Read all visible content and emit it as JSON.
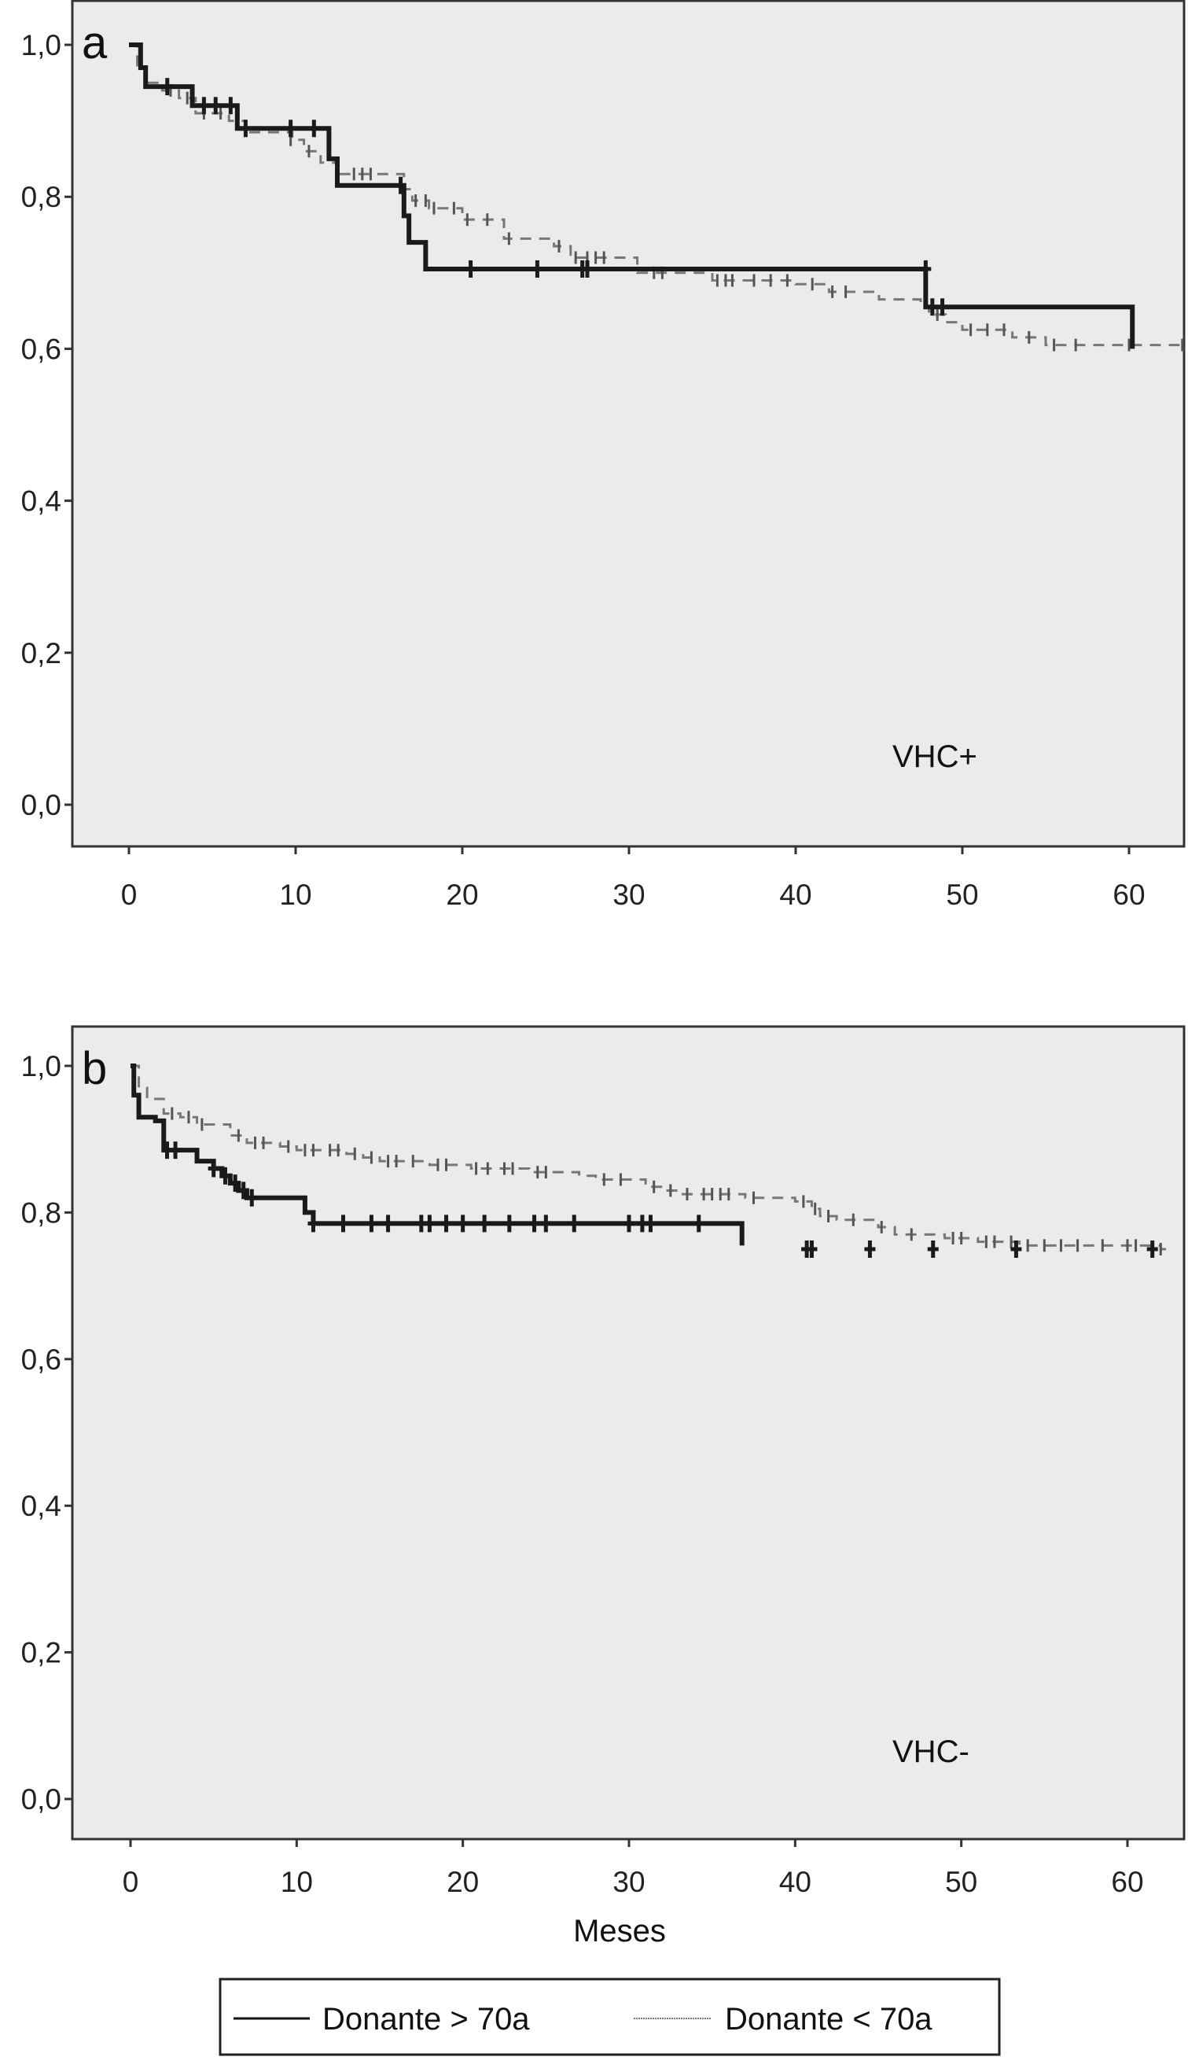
{
  "chart_data": [
    {
      "type": "line",
      "subtype": "kaplan-meier",
      "panel_label": "a",
      "annotation": "VHC+",
      "xlabel": "",
      "ylabel": "",
      "xlim": [
        -3,
        63.5
      ],
      "ylim": [
        -0.05,
        1.05
      ],
      "xticks": [
        "0",
        "10",
        "20",
        "30",
        "40",
        "50",
        "60"
      ],
      "xtick_values": [
        0,
        10,
        20,
        30,
        40,
        50,
        60
      ],
      "yticks": [
        "0,0",
        "0,2",
        "0,4",
        "0,6",
        "0,8",
        "1,0"
      ],
      "ytick_values": [
        0,
        0.2,
        0.4,
        0.6,
        0.8,
        1.0
      ],
      "grid": false,
      "series": [
        {
          "name": "Donante > 70a",
          "style": "solid",
          "steps": [
            [
              0,
              1.0
            ],
            [
              0.7,
              0.97
            ],
            [
              1,
              0.945
            ],
            [
              3.8,
              0.92
            ],
            [
              6.5,
              0.89
            ],
            [
              12,
              0.85
            ],
            [
              12.5,
              0.815
            ],
            [
              16.5,
              0.775
            ],
            [
              16.8,
              0.74
            ],
            [
              17.8,
              0.705
            ],
            [
              47.8,
              0.655
            ],
            [
              60.2,
              0.6
            ]
          ],
          "end": 60.2,
          "censored": [
            [
              2.3,
              0.945
            ],
            [
              4.5,
              0.92
            ],
            [
              5.2,
              0.92
            ],
            [
              6.1,
              0.92
            ],
            [
              7,
              0.89
            ],
            [
              9.7,
              0.89
            ],
            [
              11.1,
              0.89
            ],
            [
              16.3,
              0.815
            ],
            [
              20.5,
              0.705
            ],
            [
              24.5,
              0.705
            ],
            [
              27.2,
              0.705
            ],
            [
              27.5,
              0.705
            ],
            [
              47.8,
              0.705
            ],
            [
              48.2,
              0.655
            ],
            [
              48.8,
              0.655
            ]
          ]
        },
        {
          "name": "Donante < 70a",
          "style": "dashed",
          "steps": [
            [
              0,
              1.0
            ],
            [
              0.5,
              0.97
            ],
            [
              1,
              0.95
            ],
            [
              2,
              0.94
            ],
            [
              3,
              0.93
            ],
            [
              4,
              0.91
            ],
            [
              6,
              0.9
            ],
            [
              7,
              0.885
            ],
            [
              9.8,
              0.875
            ],
            [
              10.5,
              0.86
            ],
            [
              11.5,
              0.845
            ],
            [
              12.5,
              0.83
            ],
            [
              16.5,
              0.81
            ],
            [
              17,
              0.795
            ],
            [
              18,
              0.785
            ],
            [
              20,
              0.77
            ],
            [
              22.5,
              0.745
            ],
            [
              25.5,
              0.735
            ],
            [
              26.5,
              0.72
            ],
            [
              30.5,
              0.7
            ],
            [
              35,
              0.69
            ],
            [
              40,
              0.685
            ],
            [
              42,
              0.675
            ],
            [
              45,
              0.665
            ],
            [
              47.5,
              0.655
            ],
            [
              48,
              0.645
            ],
            [
              49,
              0.635
            ],
            [
              50,
              0.625
            ],
            [
              53,
              0.615
            ],
            [
              55,
              0.605
            ]
          ],
          "end": 63.5,
          "censored": [
            [
              2.5,
              0.94
            ],
            [
              3.5,
              0.93
            ],
            [
              4.5,
              0.91
            ],
            [
              5.5,
              0.91
            ],
            [
              9.7,
              0.875
            ],
            [
              10.8,
              0.86
            ],
            [
              13.5,
              0.83
            ],
            [
              14,
              0.83
            ],
            [
              14.5,
              0.83
            ],
            [
              17.2,
              0.795
            ],
            [
              17.8,
              0.795
            ],
            [
              18.3,
              0.785
            ],
            [
              19.5,
              0.785
            ],
            [
              20.3,
              0.77
            ],
            [
              21.5,
              0.77
            ],
            [
              22.8,
              0.745
            ],
            [
              25.8,
              0.735
            ],
            [
              26.8,
              0.72
            ],
            [
              27.5,
              0.72
            ],
            [
              28,
              0.72
            ],
            [
              28.5,
              0.72
            ],
            [
              31.5,
              0.7
            ],
            [
              32,
              0.7
            ],
            [
              35.3,
              0.69
            ],
            [
              35.8,
              0.69
            ],
            [
              36.2,
              0.69
            ],
            [
              37.5,
              0.69
            ],
            [
              38.5,
              0.69
            ],
            [
              39.5,
              0.69
            ],
            [
              41,
              0.685
            ],
            [
              42.2,
              0.675
            ],
            [
              43,
              0.675
            ],
            [
              48.5,
              0.645
            ],
            [
              50.5,
              0.625
            ],
            [
              51.5,
              0.625
            ],
            [
              52.5,
              0.625
            ],
            [
              54,
              0.615
            ],
            [
              55.5,
              0.605
            ],
            [
              56.8,
              0.605
            ],
            [
              60,
              0.605
            ],
            [
              63.2,
              0.605
            ]
          ]
        }
      ]
    },
    {
      "type": "line",
      "subtype": "kaplan-meier",
      "panel_label": "b",
      "annotation": "VHC-",
      "xlabel": "Meses",
      "ylabel": "",
      "xlim": [
        -3,
        63.5
      ],
      "ylim": [
        -0.05,
        1.05
      ],
      "xticks": [
        "0",
        "10",
        "20",
        "30",
        "40",
        "50",
        "60"
      ],
      "xtick_values": [
        0,
        10,
        20,
        30,
        40,
        50,
        60
      ],
      "yticks": [
        "0,0",
        "0,2",
        "0,4",
        "0,6",
        "0,8",
        "1,0"
      ],
      "ytick_values": [
        0,
        0.2,
        0.4,
        0.6,
        0.8,
        1.0
      ],
      "grid": false,
      "legend": {
        "position": "bottom",
        "entries": [
          "Donante > 70a",
          "Donante < 70a"
        ]
      },
      "series": [
        {
          "name": "Donante > 70a",
          "style": "solid",
          "steps": [
            [
              0,
              1.0
            ],
            [
              0.2,
              0.96
            ],
            [
              0.5,
              0.93
            ],
            [
              1.5,
              0.925
            ],
            [
              2,
              0.885
            ],
            [
              4,
              0.87
            ],
            [
              5,
              0.86
            ],
            [
              5.5,
              0.85
            ],
            [
              6,
              0.84
            ],
            [
              6.5,
              0.83
            ],
            [
              7,
              0.82
            ],
            [
              10.5,
              0.8
            ],
            [
              11,
              0.785
            ],
            [
              36.8,
              0.755
            ]
          ],
          "end": 36.8,
          "censored": [
            [
              2.2,
              0.885
            ],
            [
              2.7,
              0.885
            ],
            [
              5,
              0.86
            ],
            [
              5.7,
              0.85
            ],
            [
              6.3,
              0.84
            ],
            [
              6.8,
              0.83
            ],
            [
              7.3,
              0.82
            ],
            [
              11,
              0.785
            ],
            [
              12.8,
              0.785
            ],
            [
              14.5,
              0.785
            ],
            [
              15.5,
              0.785
            ],
            [
              17.5,
              0.785
            ],
            [
              18,
              0.785
            ],
            [
              19,
              0.785
            ],
            [
              20,
              0.785
            ],
            [
              21.3,
              0.785
            ],
            [
              22.8,
              0.785
            ],
            [
              24.3,
              0.785
            ],
            [
              25,
              0.785
            ],
            [
              26.7,
              0.785
            ],
            [
              30,
              0.785
            ],
            [
              30.8,
              0.785
            ],
            [
              31.3,
              0.785
            ],
            [
              34.2,
              0.785
            ],
            [
              40.7,
              0.75
            ],
            [
              41,
              0.75
            ],
            [
              44.5,
              0.75
            ],
            [
              48.3,
              0.75
            ],
            [
              53.3,
              0.75
            ],
            [
              61.5,
              0.75
            ]
          ]
        },
        {
          "name": "Donante < 70a",
          "style": "dashed",
          "steps": [
            [
              0,
              1.0
            ],
            [
              0.5,
              0.97
            ],
            [
              1,
              0.955
            ],
            [
              2,
              0.935
            ],
            [
              3,
              0.93
            ],
            [
              4,
              0.92
            ],
            [
              6,
              0.905
            ],
            [
              7,
              0.895
            ],
            [
              9,
              0.89
            ],
            [
              10,
              0.885
            ],
            [
              13,
              0.88
            ],
            [
              14,
              0.875
            ],
            [
              15,
              0.87
            ],
            [
              18,
              0.865
            ],
            [
              20.5,
              0.86
            ],
            [
              24,
              0.855
            ],
            [
              27,
              0.85
            ],
            [
              28,
              0.845
            ],
            [
              31,
              0.835
            ],
            [
              32,
              0.83
            ],
            [
              33,
              0.825
            ],
            [
              37,
              0.82
            ],
            [
              40,
              0.815
            ],
            [
              41,
              0.805
            ],
            [
              41.5,
              0.795
            ],
            [
              42.5,
              0.79
            ],
            [
              45,
              0.78
            ],
            [
              46,
              0.77
            ],
            [
              49,
              0.765
            ],
            [
              51,
              0.76
            ],
            [
              53.5,
              0.755
            ],
            [
              62,
              0.75
            ]
          ],
          "end": 62.7,
          "censored": [
            [
              2.5,
              0.935
            ],
            [
              3.5,
              0.93
            ],
            [
              4.3,
              0.92
            ],
            [
              6.5,
              0.905
            ],
            [
              7.5,
              0.895
            ],
            [
              8,
              0.895
            ],
            [
              9.5,
              0.89
            ],
            [
              10.5,
              0.885
            ],
            [
              11,
              0.885
            ],
            [
              12,
              0.885
            ],
            [
              12.5,
              0.885
            ],
            [
              13.5,
              0.88
            ],
            [
              14.5,
              0.875
            ],
            [
              15.5,
              0.87
            ],
            [
              16,
              0.87
            ],
            [
              17,
              0.87
            ],
            [
              18.5,
              0.865
            ],
            [
              19,
              0.865
            ],
            [
              20.8,
              0.86
            ],
            [
              21.5,
              0.86
            ],
            [
              22.5,
              0.86
            ],
            [
              23,
              0.86
            ],
            [
              24.5,
              0.855
            ],
            [
              25,
              0.855
            ],
            [
              28.5,
              0.845
            ],
            [
              29.5,
              0.845
            ],
            [
              31.5,
              0.835
            ],
            [
              32.5,
              0.83
            ],
            [
              33.5,
              0.825
            ],
            [
              34.5,
              0.825
            ],
            [
              35,
              0.825
            ],
            [
              35.5,
              0.825
            ],
            [
              36,
              0.825
            ],
            [
              37.5,
              0.82
            ],
            [
              40.5,
              0.815
            ],
            [
              41.2,
              0.805
            ],
            [
              42,
              0.795
            ],
            [
              43.5,
              0.79
            ],
            [
              45.2,
              0.78
            ],
            [
              47,
              0.77
            ],
            [
              49.5,
              0.765
            ],
            [
              50,
              0.765
            ],
            [
              51.5,
              0.76
            ],
            [
              52,
              0.76
            ],
            [
              53,
              0.76
            ],
            [
              54,
              0.755
            ],
            [
              55,
              0.755
            ],
            [
              56,
              0.755
            ],
            [
              57,
              0.755
            ],
            [
              58.5,
              0.755
            ],
            [
              60,
              0.755
            ],
            [
              60.5,
              0.755
            ],
            [
              62,
              0.75
            ]
          ]
        }
      ]
    }
  ]
}
